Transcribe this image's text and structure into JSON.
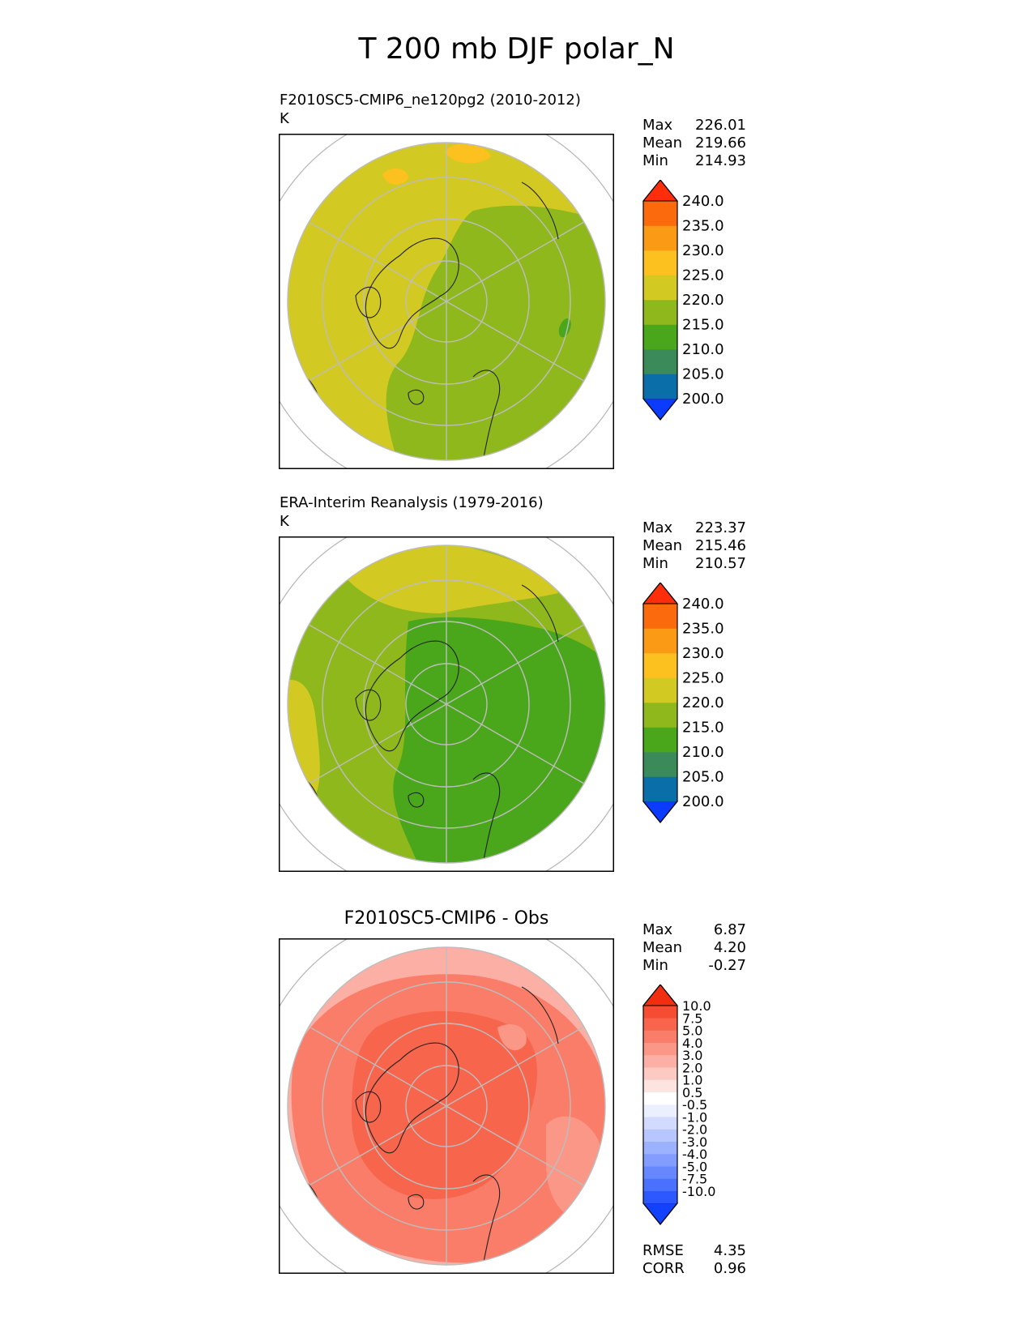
{
  "title": "T 200 mb DJF polar_N",
  "panels": [
    {
      "id": "test",
      "title_line1": "F2010SC5-CMIP6_ne120pg2 (2010-2012)",
      "title_line2": "K",
      "stats": [
        {
          "label": "Max",
          "value": "226.01"
        },
        {
          "label": "Mean",
          "value": "219.66"
        },
        {
          "label": "Min",
          "value": "214.93"
        }
      ]
    },
    {
      "id": "ref",
      "title_line1": "ERA-Interim Reanalysis (1979-2016)",
      "title_line2": "K",
      "stats": [
        {
          "label": "Max",
          "value": "223.37"
        },
        {
          "label": "Mean",
          "value": "215.46"
        },
        {
          "label": "Min",
          "value": "210.57"
        }
      ]
    },
    {
      "id": "diff",
      "title_line1": "F2010SC5-CMIP6 - Obs",
      "stats": [
        {
          "label": "Max",
          "value": "6.87"
        },
        {
          "label": "Mean",
          "value": "4.20"
        },
        {
          "label": "Min",
          "value": "-0.27"
        }
      ],
      "extra_stats": [
        {
          "label": "RMSE",
          "value": "4.35"
        },
        {
          "label": "CORR",
          "value": "0.96"
        }
      ]
    }
  ],
  "colors": {
    "abs_levels": [
      "#0b3bff",
      "#0a6fa8",
      "#3b8a5a",
      "#4aa61a",
      "#8fb81c",
      "#d3c923",
      "#fcc11e",
      "#fb9a14",
      "#fb6a0c",
      "#ff2e0a"
    ],
    "diff_levels": [
      "#1241ff",
      "#2d58ff",
      "#4a70ff",
      "#6687ff",
      "#829dff",
      "#9db2ff",
      "#b8c6ff",
      "#d3daff",
      "#eceffd",
      "#ffffff",
      "#fde4e0",
      "#fccac2",
      "#fcb0a5",
      "#fb9786",
      "#fa7d69",
      "#f8654d",
      "#f64c31",
      "#f12f10"
    ]
  },
  "chart_data": [
    {
      "type": "heatmap",
      "title": "F2010SC5-CMIP6_ne120pg2 (2010-2012)",
      "units": "K",
      "projection": "north polar stereographic",
      "colorbar_ticks": [
        "240.0",
        "235.0",
        "230.0",
        "225.0",
        "220.0",
        "215.0",
        "210.0",
        "205.0",
        "200.0"
      ],
      "colorbar_range": [
        200,
        240
      ],
      "max": 226.01,
      "mean": 219.66,
      "min": 214.93
    },
    {
      "type": "heatmap",
      "title": "ERA-Interim Reanalysis (1979-2016)",
      "units": "K",
      "projection": "north polar stereographic",
      "colorbar_ticks": [
        "240.0",
        "235.0",
        "230.0",
        "225.0",
        "220.0",
        "215.0",
        "210.0",
        "205.0",
        "200.0"
      ],
      "colorbar_range": [
        200,
        240
      ],
      "max": 223.37,
      "mean": 215.46,
      "min": 210.57
    },
    {
      "type": "heatmap",
      "title": "F2010SC5-CMIP6 - Obs",
      "projection": "north polar stereographic",
      "colorbar_ticks": [
        "10.0",
        "7.5",
        "5.0",
        "4.0",
        "3.0",
        "2.0",
        "1.0",
        "0.5",
        "-0.5",
        "-1.0",
        "-2.0",
        "-3.0",
        "-4.0",
        "-5.0",
        "-7.5",
        "-10.0"
      ],
      "colorbar_range": [
        -10,
        10
      ],
      "max": 6.87,
      "mean": 4.2,
      "min": -0.27,
      "rmse": 4.35,
      "corr": 0.96
    }
  ]
}
